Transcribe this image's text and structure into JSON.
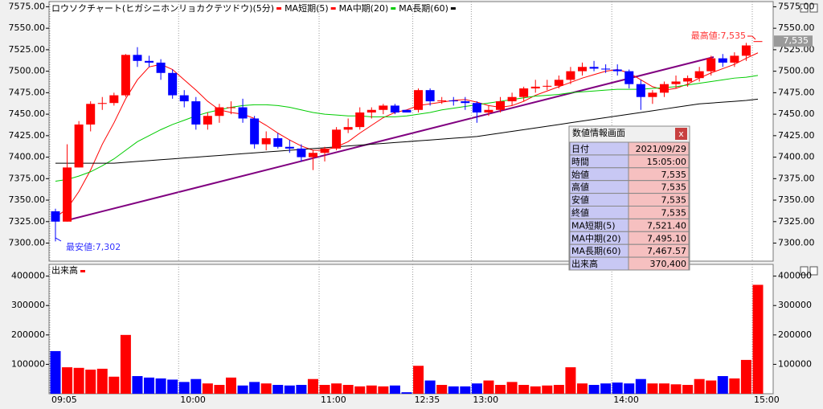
{
  "chart_data": [
    {
      "type": "candlestick",
      "title": "ロウソクチャート(ヒガシニホンリョカクテツドウ)(5分)",
      "up_color": "#ff0000",
      "down_color": "#0000ff",
      "ylim": [
        7279,
        7581
      ],
      "yticks": [
        {
          "value": 7575,
          "label": "7575.00"
        },
        {
          "value": 7550,
          "label": "7550.00"
        },
        {
          "value": 7525,
          "label": "7525.00"
        },
        {
          "value": 7500,
          "label": "7500.00"
        },
        {
          "value": 7475,
          "label": "7475.00"
        },
        {
          "value": 7450,
          "label": "7450.00"
        },
        {
          "value": 7425,
          "label": "7425.00"
        },
        {
          "value": 7400,
          "label": "7400.00"
        },
        {
          "value": 7375,
          "label": "7375.00"
        },
        {
          "value": 7350,
          "label": "7350.00"
        },
        {
          "value": 7325,
          "label": "7325.00"
        },
        {
          "value": 7300,
          "label": "7300.00"
        }
      ],
      "open": [
        7337,
        7325,
        7388,
        7438,
        7462,
        7463,
        7472,
        7519,
        7512,
        7510,
        7498,
        7472,
        7465,
        7438,
        7448,
        7458,
        7458,
        7445,
        7415,
        7422,
        7412,
        7410,
        7400,
        7405,
        7410,
        7432,
        7435,
        7452,
        7455,
        7460,
        7455,
        7455,
        7478,
        7465,
        7466,
        7465,
        7463,
        7452,
        7455,
        7465,
        7470,
        7480,
        7482,
        7483,
        7490,
        7500,
        7505,
        7503,
        7502,
        7500,
        7485,
        7470,
        7475,
        7485,
        7488,
        7492,
        7500,
        7515,
        7510,
        7518,
        7535
      ],
      "high": [
        7340,
        7415,
        7442,
        7465,
        7470,
        7475,
        7520,
        7528,
        7518,
        7514,
        7502,
        7478,
        7470,
        7452,
        7462,
        7465,
        7468,
        7448,
        7430,
        7428,
        7420,
        7415,
        7408,
        7412,
        7435,
        7445,
        7458,
        7458,
        7462,
        7462,
        7455,
        7480,
        7480,
        7470,
        7470,
        7470,
        7465,
        7460,
        7470,
        7475,
        7482,
        7490,
        7490,
        7495,
        7505,
        7510,
        7512,
        7508,
        7508,
        7502,
        7490,
        7478,
        7488,
        7495,
        7495,
        7505,
        7518,
        7520,
        7522,
        7533,
        7535
      ],
      "low": [
        7302,
        7325,
        7388,
        7430,
        7455,
        7460,
        7470,
        7505,
        7505,
        7490,
        7468,
        7458,
        7432,
        7432,
        7440,
        7450,
        7440,
        7410,
        7408,
        7410,
        7405,
        7395,
        7385,
        7395,
        7408,
        7428,
        7432,
        7445,
        7450,
        7450,
        7452,
        7452,
        7460,
        7462,
        7460,
        7455,
        7440,
        7448,
        7452,
        7460,
        7465,
        7475,
        7478,
        7480,
        7485,
        7495,
        7500,
        7498,
        7495,
        7480,
        7455,
        7462,
        7470,
        7480,
        7482,
        7488,
        7495,
        7505,
        7505,
        7512,
        7535
      ],
      "close": [
        7325,
        7388,
        7438,
        7462,
        7463,
        7472,
        7519,
        7512,
        7510,
        7498,
        7472,
        7465,
        7438,
        7448,
        7458,
        7458,
        7445,
        7415,
        7422,
        7412,
        7410,
        7400,
        7405,
        7410,
        7432,
        7435,
        7452,
        7455,
        7460,
        7452,
        7452,
        7478,
        7465,
        7466,
        7465,
        7463,
        7452,
        7455,
        7465,
        7470,
        7480,
        7482,
        7483,
        7490,
        7500,
        7505,
        7503,
        7502,
        7500,
        7485,
        7470,
        7475,
        7485,
        7488,
        7492,
        7500,
        7515,
        7510,
        7518,
        7530,
        7535
      ],
      "series": [
        {
          "name": "MA短期(5)",
          "color": "#ff0000",
          "values": [
            7330,
            7340,
            7360,
            7385,
            7415,
            7440,
            7468,
            7490,
            7505,
            7508,
            7502,
            7490,
            7478,
            7465,
            7455,
            7452,
            7450,
            7445,
            7437,
            7428,
            7420,
            7413,
            7408,
            7408,
            7412,
            7418,
            7428,
            7437,
            7446,
            7452,
            7455,
            7460,
            7462,
            7464,
            7466,
            7467,
            7464,
            7460,
            7458,
            7460,
            7465,
            7472,
            7477,
            7482,
            7487,
            7492,
            7496,
            7500,
            7502,
            7498,
            7490,
            7482,
            7478,
            7480,
            7485,
            7492,
            7498,
            7503,
            7508,
            7515,
            7521.4
          ]
        },
        {
          "name": "MA中期(20)",
          "color": "#00cc00",
          "values": [
            7372,
            7374,
            7378,
            7383,
            7390,
            7398,
            7408,
            7418,
            7425,
            7432,
            7438,
            7443,
            7448,
            7452,
            7455,
            7458,
            7460,
            7461,
            7461,
            7460,
            7458,
            7455,
            7452,
            7450,
            7449,
            7448,
            7448,
            7447,
            7447,
            7447,
            7448,
            7450,
            7452,
            7455,
            7457,
            7459,
            7461,
            7463,
            7465,
            7467,
            7469,
            7471,
            7472,
            7473,
            7475,
            7476,
            7477,
            7478,
            7479,
            7479,
            7479,
            7480,
            7481,
            7482,
            7484,
            7486,
            7488,
            7490,
            7492,
            7493,
            7495.1
          ]
        },
        {
          "name": "MA長期(60)",
          "color": "#000000",
          "values": [
            7393,
            7393,
            7393,
            7393,
            7393,
            7393,
            7394,
            7395,
            7396,
            7397,
            7398,
            7399,
            7400,
            7401,
            7402,
            7403,
            7404,
            7405,
            7406,
            7407,
            7408,
            7409,
            7410,
            7411,
            7412,
            7413,
            7414,
            7415,
            7416,
            7417,
            7418,
            7419,
            7420,
            7421,
            7422,
            7423,
            7424,
            7426,
            7428,
            7430,
            7432,
            7434,
            7436,
            7438,
            7440,
            7442,
            7444,
            7446,
            7448,
            7450,
            7452,
            7454,
            7456,
            7458,
            7460,
            7462,
            7463,
            7464,
            7465,
            7466,
            7467.57
          ]
        }
      ],
      "low_label": "最安値:7,302",
      "high_label": "最高値:7,535",
      "last_price_label": "7,535",
      "last_price": 7535
    },
    {
      "type": "bar",
      "title": "出来高",
      "color": "#ff0000",
      "ylim": [
        0,
        440000
      ],
      "yticks": [
        100000,
        200000,
        300000,
        400000
      ],
      "categories": [
        "09:05",
        null,
        null,
        null,
        null,
        null,
        null,
        null,
        null,
        null,
        null,
        "10:00",
        null,
        null,
        null,
        null,
        null,
        null,
        null,
        null,
        null,
        null,
        null,
        "11:00",
        null,
        null,
        null,
        null,
        null,
        null,
        null,
        "12:35",
        null,
        null,
        null,
        null,
        "13:00",
        null,
        null,
        null,
        null,
        null,
        null,
        null,
        null,
        null,
        null,
        null,
        "14:00",
        null,
        null,
        null,
        null,
        null,
        null,
        null,
        null,
        null,
        null,
        null,
        "15:00"
      ],
      "values": [
        145000,
        90000,
        88000,
        82000,
        85000,
        58000,
        200000,
        60000,
        55000,
        52000,
        48000,
        40000,
        50000,
        35000,
        30000,
        55000,
        28000,
        40000,
        35000,
        30000,
        28000,
        30000,
        50000,
        30000,
        35000,
        30000,
        25000,
        28000,
        25000,
        28000,
        5000,
        95000,
        45000,
        30000,
        25000,
        25000,
        35000,
        45000,
        30000,
        40000,
        30000,
        25000,
        28000,
        30000,
        90000,
        35000,
        30000,
        35000,
        38000,
        35000,
        50000,
        35000,
        35000,
        32000,
        30000,
        50000,
        45000,
        60000,
        52000,
        115000,
        370400
      ]
    }
  ],
  "info_panel": {
    "title": "数値情報画面",
    "close": "x",
    "rows": [
      [
        "日付",
        "2021/09/29"
      ],
      [
        "時間",
        "15:05:00"
      ],
      [
        "始値",
        "7,535"
      ],
      [
        "高値",
        "7,535"
      ],
      [
        "安値",
        "7,535"
      ],
      [
        "終値",
        "7,535"
      ],
      [
        "MA短期(5)",
        "7,521.40"
      ],
      [
        "MA中期(20)",
        "7,495.10"
      ],
      [
        "MA長期(60)",
        "7,467.57"
      ],
      [
        "出来高",
        "370,400"
      ]
    ]
  }
}
